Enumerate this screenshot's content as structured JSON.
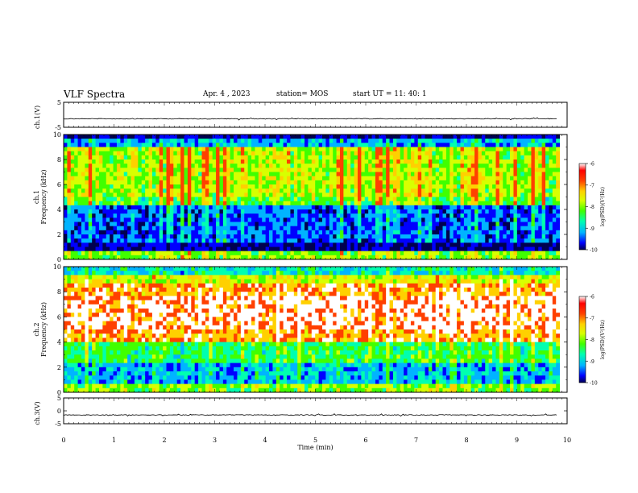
{
  "header": {
    "title": "VLF Spectra",
    "date": "Apr. 4 , 2023",
    "station": "station= MOS",
    "start": "start  UT =   11: 40: 1"
  },
  "chart_data": [
    {
      "type": "line",
      "panel": "ch1-waveform",
      "ylabel": "ch.1(V)",
      "ylim": [
        -5,
        5
      ],
      "yticks": [
        5,
        -5
      ],
      "xlim": [
        0,
        10
      ],
      "series": [
        {
          "values": [
            -1.6,
            -1.6
          ]
        }
      ]
    },
    {
      "type": "heatmap",
      "panel": "ch1-spectrogram",
      "ylabel_line1": "ch.1",
      "ylabel_line2": "Frequency (kHz)",
      "ylim": [
        0,
        10
      ],
      "yticks": [
        0,
        2,
        4,
        6,
        8,
        10
      ],
      "xlim": [
        0,
        10
      ],
      "data_end_min": 9.85,
      "colorbar": {
        "label": "log(PSD)(V²/Hz)",
        "range": [
          -10,
          -6
        ],
        "ticks": [
          -6,
          -7,
          -8,
          -9,
          -10
        ]
      }
    },
    {
      "type": "heatmap",
      "panel": "ch2-spectrogram",
      "ylabel_line1": "ch.2",
      "ylabel_line2": "Frequency (kHz)",
      "ylim": [
        0,
        10
      ],
      "yticks": [
        0,
        2,
        4,
        6,
        8,
        10
      ],
      "xlim": [
        0,
        10
      ],
      "data_end_min": 9.85,
      "colorbar": {
        "label": "log(PSD)(V²/Hz)",
        "range": [
          -10,
          -6
        ],
        "ticks": [
          -6,
          -7,
          -8,
          -9,
          -10
        ]
      }
    },
    {
      "type": "line",
      "panel": "ch3-waveform",
      "ylabel": "ch.3(V)",
      "ylim": [
        -5,
        5
      ],
      "yticks": [
        5,
        0,
        -5
      ],
      "xlim": [
        0,
        10
      ],
      "series": [
        {
          "values": [
            -1.6,
            -1.6
          ]
        }
      ]
    }
  ],
  "xaxis": {
    "label": "Time  (min)",
    "ticks": [
      0,
      1,
      2,
      3,
      4,
      5,
      6,
      7,
      8,
      9,
      10
    ]
  },
  "colors": {
    "scale": [
      "#000050",
      "#0000ff",
      "#00b4ff",
      "#00ffb0",
      "#40ff00",
      "#d8ff00",
      "#ffd000",
      "#ff4000",
      "#ff0000",
      "#ffffff"
    ]
  }
}
